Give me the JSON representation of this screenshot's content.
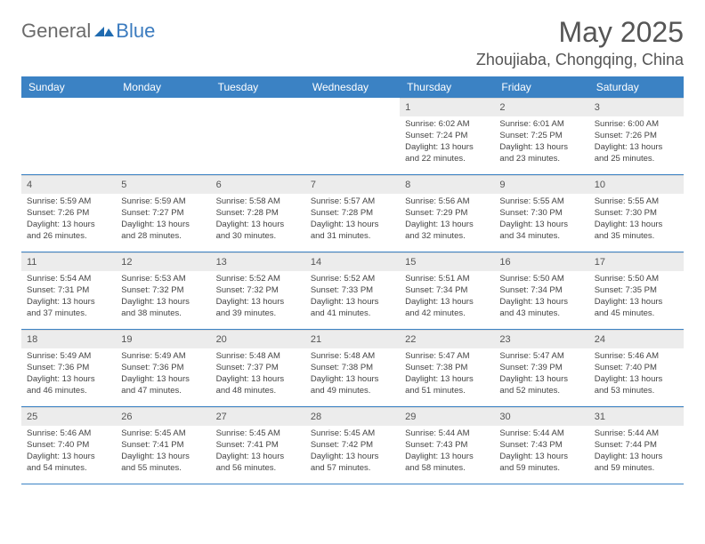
{
  "logo": {
    "general": "General",
    "blue": "Blue"
  },
  "title": "May 2025",
  "location": "Zhoujiaba, Chongqing, China",
  "day_headers": [
    "Sunday",
    "Monday",
    "Tuesday",
    "Wednesday",
    "Thursday",
    "Friday",
    "Saturday"
  ],
  "colors": {
    "header_bg": "#3b82c4",
    "header_text": "#ffffff",
    "date_bg": "#ececec",
    "border": "#3b82c4"
  },
  "weeks": [
    [
      null,
      null,
      null,
      null,
      {
        "n": "1",
        "sr": "6:02 AM",
        "ss": "7:24 PM",
        "dl": "13 hours and 22 minutes."
      },
      {
        "n": "2",
        "sr": "6:01 AM",
        "ss": "7:25 PM",
        "dl": "13 hours and 23 minutes."
      },
      {
        "n": "3",
        "sr": "6:00 AM",
        "ss": "7:26 PM",
        "dl": "13 hours and 25 minutes."
      }
    ],
    [
      {
        "n": "4",
        "sr": "5:59 AM",
        "ss": "7:26 PM",
        "dl": "13 hours and 26 minutes."
      },
      {
        "n": "5",
        "sr": "5:59 AM",
        "ss": "7:27 PM",
        "dl": "13 hours and 28 minutes."
      },
      {
        "n": "6",
        "sr": "5:58 AM",
        "ss": "7:28 PM",
        "dl": "13 hours and 30 minutes."
      },
      {
        "n": "7",
        "sr": "5:57 AM",
        "ss": "7:28 PM",
        "dl": "13 hours and 31 minutes."
      },
      {
        "n": "8",
        "sr": "5:56 AM",
        "ss": "7:29 PM",
        "dl": "13 hours and 32 minutes."
      },
      {
        "n": "9",
        "sr": "5:55 AM",
        "ss": "7:30 PM",
        "dl": "13 hours and 34 minutes."
      },
      {
        "n": "10",
        "sr": "5:55 AM",
        "ss": "7:30 PM",
        "dl": "13 hours and 35 minutes."
      }
    ],
    [
      {
        "n": "11",
        "sr": "5:54 AM",
        "ss": "7:31 PM",
        "dl": "13 hours and 37 minutes."
      },
      {
        "n": "12",
        "sr": "5:53 AM",
        "ss": "7:32 PM",
        "dl": "13 hours and 38 minutes."
      },
      {
        "n": "13",
        "sr": "5:52 AM",
        "ss": "7:32 PM",
        "dl": "13 hours and 39 minutes."
      },
      {
        "n": "14",
        "sr": "5:52 AM",
        "ss": "7:33 PM",
        "dl": "13 hours and 41 minutes."
      },
      {
        "n": "15",
        "sr": "5:51 AM",
        "ss": "7:34 PM",
        "dl": "13 hours and 42 minutes."
      },
      {
        "n": "16",
        "sr": "5:50 AM",
        "ss": "7:34 PM",
        "dl": "13 hours and 43 minutes."
      },
      {
        "n": "17",
        "sr": "5:50 AM",
        "ss": "7:35 PM",
        "dl": "13 hours and 45 minutes."
      }
    ],
    [
      {
        "n": "18",
        "sr": "5:49 AM",
        "ss": "7:36 PM",
        "dl": "13 hours and 46 minutes."
      },
      {
        "n": "19",
        "sr": "5:49 AM",
        "ss": "7:36 PM",
        "dl": "13 hours and 47 minutes."
      },
      {
        "n": "20",
        "sr": "5:48 AM",
        "ss": "7:37 PM",
        "dl": "13 hours and 48 minutes."
      },
      {
        "n": "21",
        "sr": "5:48 AM",
        "ss": "7:38 PM",
        "dl": "13 hours and 49 minutes."
      },
      {
        "n": "22",
        "sr": "5:47 AM",
        "ss": "7:38 PM",
        "dl": "13 hours and 51 minutes."
      },
      {
        "n": "23",
        "sr": "5:47 AM",
        "ss": "7:39 PM",
        "dl": "13 hours and 52 minutes."
      },
      {
        "n": "24",
        "sr": "5:46 AM",
        "ss": "7:40 PM",
        "dl": "13 hours and 53 minutes."
      }
    ],
    [
      {
        "n": "25",
        "sr": "5:46 AM",
        "ss": "7:40 PM",
        "dl": "13 hours and 54 minutes."
      },
      {
        "n": "26",
        "sr": "5:45 AM",
        "ss": "7:41 PM",
        "dl": "13 hours and 55 minutes."
      },
      {
        "n": "27",
        "sr": "5:45 AM",
        "ss": "7:41 PM",
        "dl": "13 hours and 56 minutes."
      },
      {
        "n": "28",
        "sr": "5:45 AM",
        "ss": "7:42 PM",
        "dl": "13 hours and 57 minutes."
      },
      {
        "n": "29",
        "sr": "5:44 AM",
        "ss": "7:43 PM",
        "dl": "13 hours and 58 minutes."
      },
      {
        "n": "30",
        "sr": "5:44 AM",
        "ss": "7:43 PM",
        "dl": "13 hours and 59 minutes."
      },
      {
        "n": "31",
        "sr": "5:44 AM",
        "ss": "7:44 PM",
        "dl": "13 hours and 59 minutes."
      }
    ]
  ],
  "labels": {
    "sunrise": "Sunrise:",
    "sunset": "Sunset:",
    "daylight": "Daylight:"
  }
}
